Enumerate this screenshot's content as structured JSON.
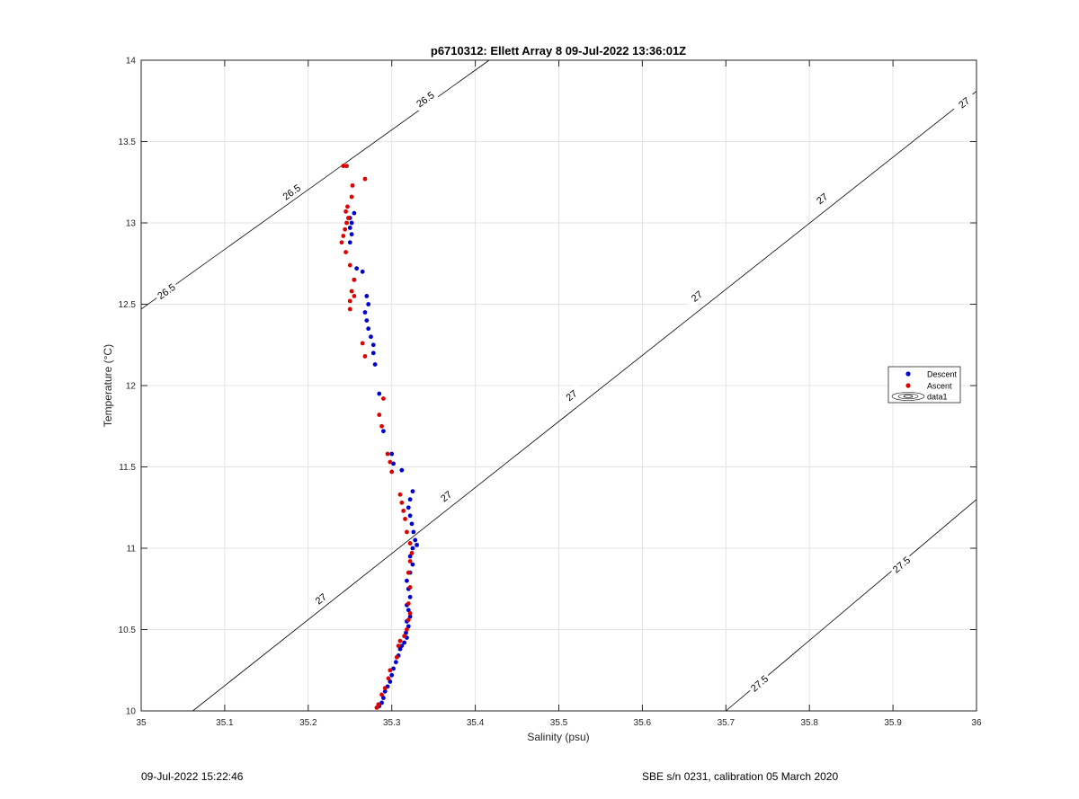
{
  "footer": {
    "left": "09-Jul-2022 15:22:46",
    "right": "SBE s/n 0231, calibration 05 March 2020"
  },
  "chart_data": {
    "type": "scatter",
    "title": "p6710312: Ellett Array 8 09-Jul-2022 13:36:01Z",
    "xlabel": "Salinity (psu)",
    "ylabel": "Temperature (°C)",
    "xlim": [
      35,
      36
    ],
    "ylim": [
      10,
      14
    ],
    "xticks": [
      35,
      35.1,
      35.2,
      35.3,
      35.4,
      35.5,
      35.6,
      35.7,
      35.8,
      35.9,
      36
    ],
    "xtick_labels": [
      "35",
      "35.1",
      "35.2",
      "35.3",
      "35.4",
      "35.5",
      "35.6",
      "35.7",
      "35.8",
      "35.9",
      "36"
    ],
    "yticks": [
      10,
      10.5,
      11,
      11.5,
      12,
      12.5,
      13,
      13.5,
      14
    ],
    "ytick_labels": [
      "10",
      "10.5",
      "11",
      "11.5",
      "12",
      "12.5",
      "13",
      "13.5",
      "14"
    ],
    "grid": true,
    "legend": {
      "placement": "right",
      "entries": [
        "Descent",
        "Ascent",
        "data1"
      ]
    },
    "colors": {
      "descent": "#0000cc",
      "ascent": "#dd0000",
      "contour": "#000000",
      "grid": "#e4e4e4"
    },
    "series": [
      {
        "name": "Descent",
        "points": [
          [
            35.285,
            10.03
          ],
          [
            35.288,
            10.05
          ],
          [
            35.29,
            10.08
          ],
          [
            35.292,
            10.12
          ],
          [
            35.295,
            10.15
          ],
          [
            35.298,
            10.18
          ],
          [
            35.3,
            10.22
          ],
          [
            35.302,
            10.26
          ],
          [
            35.305,
            10.3
          ],
          [
            35.308,
            10.34
          ],
          [
            35.31,
            10.38
          ],
          [
            35.312,
            10.4
          ],
          [
            35.315,
            10.42
          ],
          [
            35.318,
            10.45
          ],
          [
            35.317,
            10.48
          ],
          [
            35.32,
            10.52
          ],
          [
            35.318,
            10.55
          ],
          [
            35.322,
            10.58
          ],
          [
            35.32,
            10.62
          ],
          [
            35.318,
            10.65
          ],
          [
            35.322,
            10.7
          ],
          [
            35.32,
            10.75
          ],
          [
            35.318,
            10.8
          ],
          [
            35.322,
            10.85
          ],
          [
            35.325,
            10.9
          ],
          [
            35.322,
            10.95
          ],
          [
            35.325,
            11.0
          ],
          [
            35.33,
            11.02
          ],
          [
            35.328,
            11.05
          ],
          [
            35.326,
            11.1
          ],
          [
            35.324,
            11.15
          ],
          [
            35.322,
            11.2
          ],
          [
            35.32,
            11.25
          ],
          [
            35.322,
            11.3
          ],
          [
            35.325,
            11.35
          ],
          [
            35.3,
            11.58
          ],
          [
            35.302,
            11.52
          ],
          [
            35.312,
            11.48
          ],
          [
            35.29,
            11.72
          ],
          [
            35.285,
            11.95
          ],
          [
            35.28,
            12.13
          ],
          [
            35.278,
            12.2
          ],
          [
            35.278,
            12.25
          ],
          [
            35.275,
            12.3
          ],
          [
            35.272,
            12.35
          ],
          [
            35.27,
            12.4
          ],
          [
            35.268,
            12.45
          ],
          [
            35.272,
            12.5
          ],
          [
            35.27,
            12.55
          ],
          [
            35.265,
            12.7
          ],
          [
            35.258,
            12.72
          ],
          [
            35.255,
            12.65
          ],
          [
            35.25,
            12.88
          ],
          [
            35.252,
            12.93
          ],
          [
            35.25,
            12.97
          ],
          [
            35.252,
            13.0
          ],
          [
            35.25,
            13.03
          ],
          [
            35.255,
            13.06
          ]
        ]
      },
      {
        "name": "Ascent",
        "points": [
          [
            35.282,
            10.02
          ],
          [
            35.284,
            10.04
          ],
          [
            35.288,
            10.1
          ],
          [
            35.292,
            10.14
          ],
          [
            35.296,
            10.2
          ],
          [
            35.298,
            10.25
          ],
          [
            35.306,
            10.33
          ],
          [
            35.308,
            10.4
          ],
          [
            35.31,
            10.43
          ],
          [
            35.315,
            10.46
          ],
          [
            35.318,
            10.5
          ],
          [
            35.32,
            10.56
          ],
          [
            35.322,
            10.6
          ],
          [
            35.32,
            10.66
          ],
          [
            35.322,
            10.76
          ],
          [
            35.32,
            10.85
          ],
          [
            35.322,
            10.92
          ],
          [
            35.324,
            10.97
          ],
          [
            35.322,
            11.03
          ],
          [
            35.318,
            11.1
          ],
          [
            35.316,
            11.18
          ],
          [
            35.314,
            11.23
          ],
          [
            35.312,
            11.28
          ],
          [
            35.31,
            11.33
          ],
          [
            35.3,
            11.47
          ],
          [
            35.298,
            11.53
          ],
          [
            35.295,
            11.58
          ],
          [
            35.288,
            11.75
          ],
          [
            35.285,
            11.82
          ],
          [
            35.29,
            11.92
          ],
          [
            35.268,
            12.18
          ],
          [
            35.265,
            12.26
          ],
          [
            35.25,
            12.47
          ],
          [
            35.25,
            12.52
          ],
          [
            35.255,
            12.55
          ],
          [
            35.252,
            12.58
          ],
          [
            35.255,
            12.65
          ],
          [
            35.25,
            12.74
          ],
          [
            35.245,
            12.82
          ],
          [
            35.24,
            12.88
          ],
          [
            35.242,
            12.92
          ],
          [
            35.244,
            12.96
          ],
          [
            35.246,
            13.0
          ],
          [
            35.248,
            13.03
          ],
          [
            35.245,
            13.07
          ],
          [
            35.247,
            13.1
          ],
          [
            35.252,
            13.16
          ],
          [
            35.253,
            13.23
          ],
          [
            35.268,
            13.27
          ],
          [
            35.242,
            13.35
          ],
          [
            35.246,
            13.35
          ]
        ]
      }
    ],
    "contours": [
      {
        "level": "26.5",
        "points": [
          [
            35.0,
            12.47
          ],
          [
            35.4166,
            14.0
          ]
        ],
        "labels": [
          [
            35.03,
            12.58
          ],
          [
            35.18,
            13.19
          ],
          [
            35.34,
            13.76
          ]
        ]
      },
      {
        "level": "27",
        "points": [
          [
            35.0618,
            10.0
          ],
          [
            36.0,
            13.81
          ]
        ],
        "labels": [
          [
            35.215,
            10.69
          ],
          [
            35.365,
            11.32
          ],
          [
            35.515,
            11.94
          ],
          [
            35.665,
            12.55
          ],
          [
            35.815,
            13.15
          ],
          [
            35.985,
            13.74
          ]
        ]
      },
      {
        "level": "27.5",
        "points": [
          [
            35.7,
            10.0
          ],
          [
            36.0,
            11.3
          ]
        ],
        "labels": [
          [
            35.74,
            10.17
          ],
          [
            35.91,
            10.9
          ]
        ]
      }
    ]
  }
}
